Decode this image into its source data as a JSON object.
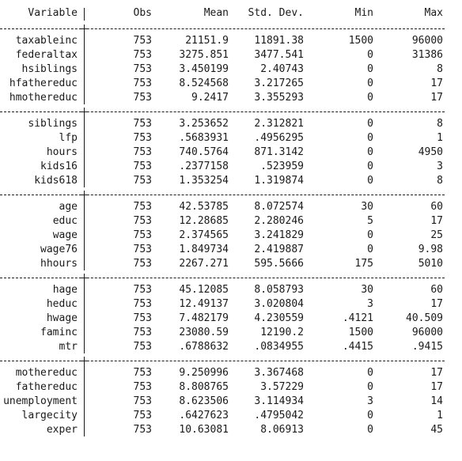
{
  "headers": {
    "variable": "Variable",
    "obs": "Obs",
    "mean": "Mean",
    "sd": "Std. Dev.",
    "min": "Min",
    "max": "Max"
  },
  "groups": [
    {
      "rows": [
        {
          "variable": "taxableinc",
          "obs": "753",
          "mean": "21151.9",
          "sd": "11891.38",
          "min": "1500",
          "max": "96000"
        },
        {
          "variable": "federaltax",
          "obs": "753",
          "mean": "3275.851",
          "sd": "3477.541",
          "min": "0",
          "max": "31386"
        },
        {
          "variable": "hsiblings",
          "obs": "753",
          "mean": "3.450199",
          "sd": "2.40743",
          "min": "0",
          "max": "8"
        },
        {
          "variable": "hfathereduc",
          "obs": "753",
          "mean": "8.524568",
          "sd": "3.217265",
          "min": "0",
          "max": "17"
        },
        {
          "variable": "hmothereduc",
          "obs": "753",
          "mean": "9.2417",
          "sd": "3.355293",
          "min": "0",
          "max": "17"
        }
      ]
    },
    {
      "rows": [
        {
          "variable": "siblings",
          "obs": "753",
          "mean": "3.253652",
          "sd": "2.312821",
          "min": "0",
          "max": "8"
        },
        {
          "variable": "lfp",
          "obs": "753",
          "mean": ".5683931",
          "sd": ".4956295",
          "min": "0",
          "max": "1"
        },
        {
          "variable": "hours",
          "obs": "753",
          "mean": "740.5764",
          "sd": "871.3142",
          "min": "0",
          "max": "4950"
        },
        {
          "variable": "kids16",
          "obs": "753",
          "mean": ".2377158",
          "sd": ".523959",
          "min": "0",
          "max": "3"
        },
        {
          "variable": "kids618",
          "obs": "753",
          "mean": "1.353254",
          "sd": "1.319874",
          "min": "0",
          "max": "8"
        }
      ]
    },
    {
      "rows": [
        {
          "variable": "age",
          "obs": "753",
          "mean": "42.53785",
          "sd": "8.072574",
          "min": "30",
          "max": "60"
        },
        {
          "variable": "educ",
          "obs": "753",
          "mean": "12.28685",
          "sd": "2.280246",
          "min": "5",
          "max": "17"
        },
        {
          "variable": "wage",
          "obs": "753",
          "mean": "2.374565",
          "sd": "3.241829",
          "min": "0",
          "max": "25"
        },
        {
          "variable": "wage76",
          "obs": "753",
          "mean": "1.849734",
          "sd": "2.419887",
          "min": "0",
          "max": "9.98"
        },
        {
          "variable": "hhours",
          "obs": "753",
          "mean": "2267.271",
          "sd": "595.5666",
          "min": "175",
          "max": "5010"
        }
      ]
    },
    {
      "rows": [
        {
          "variable": "hage",
          "obs": "753",
          "mean": "45.12085",
          "sd": "8.058793",
          "min": "30",
          "max": "60"
        },
        {
          "variable": "heduc",
          "obs": "753",
          "mean": "12.49137",
          "sd": "3.020804",
          "min": "3",
          "max": "17"
        },
        {
          "variable": "hwage",
          "obs": "753",
          "mean": "7.482179",
          "sd": "4.230559",
          "min": ".4121",
          "max": "40.509"
        },
        {
          "variable": "faminc",
          "obs": "753",
          "mean": "23080.59",
          "sd": "12190.2",
          "min": "1500",
          "max": "96000"
        },
        {
          "variable": "mtr",
          "obs": "753",
          "mean": ".6788632",
          "sd": ".0834955",
          "min": ".4415",
          "max": ".9415"
        }
      ]
    },
    {
      "rows": [
        {
          "variable": "mothereduc",
          "obs": "753",
          "mean": "9.250996",
          "sd": "3.367468",
          "min": "0",
          "max": "17"
        },
        {
          "variable": "fathereduc",
          "obs": "753",
          "mean": "8.808765",
          "sd": "3.57229",
          "min": "0",
          "max": "17"
        },
        {
          "variable": "unemployment",
          "obs": "753",
          "mean": "8.623506",
          "sd": "3.114934",
          "min": "3",
          "max": "14"
        },
        {
          "variable": "largecity",
          "obs": "753",
          "mean": ".6427623",
          "sd": ".4795042",
          "min": "0",
          "max": "1"
        },
        {
          "variable": "exper",
          "obs": "753",
          "mean": "10.63081",
          "sd": "8.06913",
          "min": "0",
          "max": "45"
        }
      ]
    }
  ]
}
